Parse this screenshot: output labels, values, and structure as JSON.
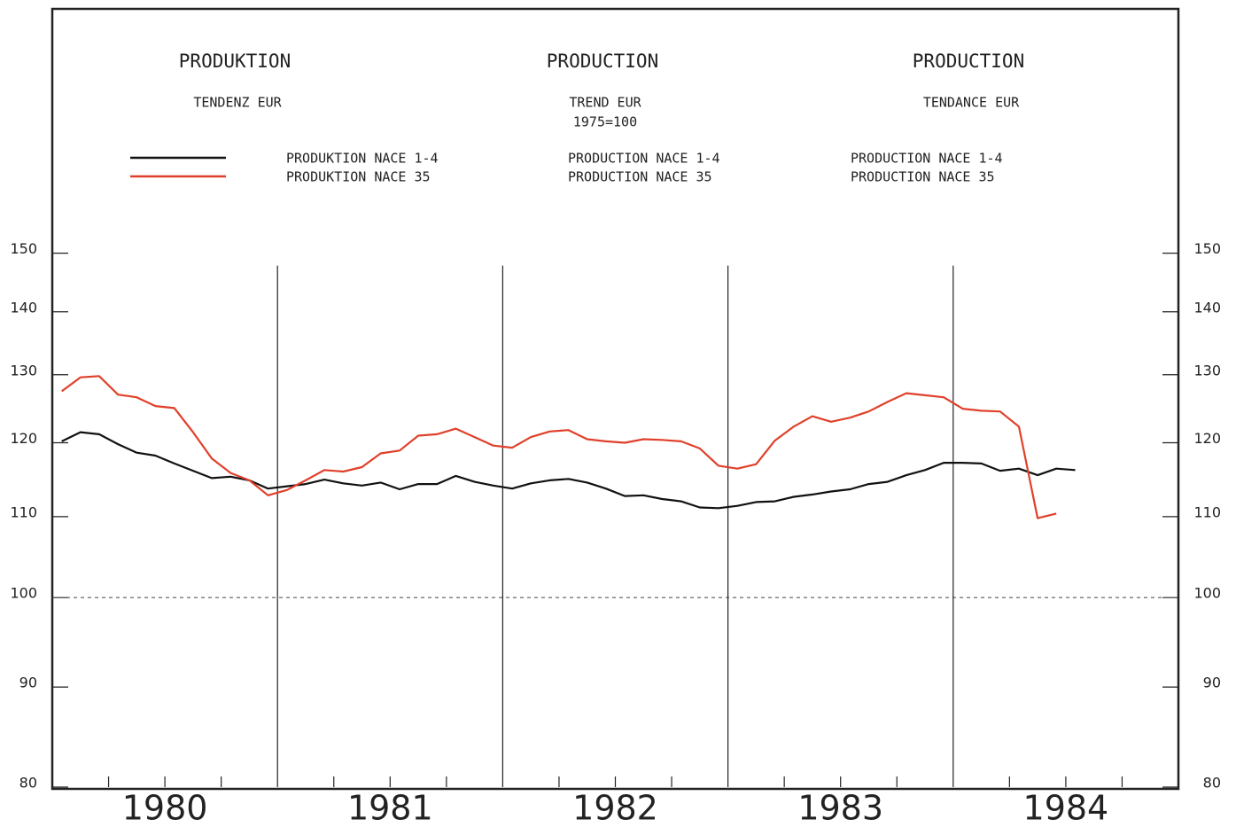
{
  "chart_data": {
    "type": "line",
    "titles": [
      {
        "title": "PRODUKTION",
        "subtitle": "TENDENZ EUR",
        "legend": [
          "PRODUKTION NACE 1-4",
          "PRODUKTION NACE 35"
        ]
      },
      {
        "title": "PRODUCTION",
        "subtitle": "TREND EUR",
        "note": "1975=100",
        "legend": [
          "PRODUCTION NACE 1-4",
          "PRODUCTION NACE 35"
        ]
      },
      {
        "title": "PRODUCTION",
        "subtitle": "TENDANCE EUR",
        "legend": [
          "PRODUCTION NACE 1-4",
          "PRODUCTION NACE 35"
        ]
      }
    ],
    "x": [
      1980.042,
      1980.125,
      1980.208,
      1980.292,
      1980.375,
      1980.458,
      1980.542,
      1980.625,
      1980.708,
      1980.792,
      1980.875,
      1980.958,
      1981.042,
      1981.125,
      1981.208,
      1981.292,
      1981.375,
      1981.458,
      1981.542,
      1981.625,
      1981.708,
      1981.792,
      1981.875,
      1981.958,
      1982.042,
      1982.125,
      1982.208,
      1982.292,
      1982.375,
      1982.458,
      1982.542,
      1982.625,
      1982.708,
      1982.792,
      1982.875,
      1982.958,
      1983.042,
      1983.125,
      1983.208,
      1983.292,
      1983.375,
      1983.458,
      1983.542,
      1983.625,
      1983.708,
      1983.792,
      1983.875,
      1983.958,
      1984.042,
      1984.125,
      1984.208,
      1984.292,
      1984.375,
      1984.458,
      1984.542
    ],
    "series": [
      {
        "name": "PRODUKTION NACE 1-4",
        "color": "#111111",
        "values": [
          120.2,
          121.5,
          121.2,
          119.8,
          118.6,
          118.2,
          117.1,
          116.1,
          115.1,
          115.3,
          114.8,
          113.7,
          114,
          114.3,
          114.9,
          114.4,
          114.1,
          114.5,
          113.6,
          114.3,
          114.3,
          115.4,
          114.6,
          114.1,
          113.7,
          114.4,
          114.8,
          115,
          114.5,
          113.7,
          112.7,
          112.8,
          112.3,
          112,
          111.2,
          111.1,
          111.4,
          111.9,
          112,
          112.6,
          112.9,
          113.3,
          113.6,
          114.3,
          114.6,
          115.5,
          116.2,
          117.2,
          117.2,
          117.1,
          116.1,
          116.4,
          115.5,
          116.4,
          116.2
        ]
      },
      {
        "name": "PRODUKTION NACE 35",
        "color": "#e0402a",
        "values": [
          127.5,
          129.6,
          129.8,
          127,
          126.6,
          125.3,
          125,
          121.5,
          117.8,
          115.8,
          114.8,
          112.8,
          113.5,
          114.8,
          116.2,
          116,
          116.6,
          118.5,
          118.9,
          121,
          121.2,
          122,
          120.8,
          119.6,
          119.3,
          120.8,
          121.6,
          121.8,
          120.5,
          120.2,
          120,
          120.5,
          120.4,
          120.2,
          119.2,
          116.8,
          116.4,
          117,
          120.3,
          122.3,
          123.8,
          123,
          123.6,
          124.5,
          125.9,
          127.2,
          126.9,
          126.6,
          124.9,
          124.6,
          124.5,
          122.3,
          109.8,
          110.4,
          null
        ]
      }
    ],
    "xlim": [
      1980,
      1985
    ],
    "xticks": [
      {
        "value": 1980.5,
        "label": "1980"
      },
      {
        "value": 1981.5,
        "label": "1981"
      },
      {
        "value": 1982.5,
        "label": "1982"
      },
      {
        "value": 1983.5,
        "label": "1983"
      },
      {
        "value": 1984.5,
        "label": "1984"
      }
    ],
    "x_minor_ticks": [
      1980.25,
      1980.5,
      1980.75,
      1981.25,
      1981.5,
      1981.75,
      1982.25,
      1982.5,
      1982.75,
      1983.25,
      1983.5,
      1983.75,
      1984.25,
      1984.5,
      1984.75
    ],
    "vlines": [
      1981,
      1982,
      1983,
      1984
    ],
    "ylim": [
      80,
      200
    ],
    "yticks": [
      80,
      90,
      100,
      110,
      120,
      130,
      140,
      150
    ],
    "hline": 100,
    "log_scale": true
  }
}
